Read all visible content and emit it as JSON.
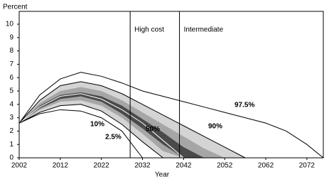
{
  "chart_data": {
    "type": "fan",
    "y_label": "Percent",
    "x_label": "Year",
    "x": [
      2002,
      2007,
      2012,
      2017,
      2022,
      2027,
      2032,
      2037,
      2042,
      2047,
      2052,
      2057,
      2062,
      2067,
      2072,
      2076
    ],
    "xlim": [
      2002,
      2076
    ],
    "xticks": [
      2002,
      2012,
      2022,
      2032,
      2042,
      2052,
      2062,
      2072
    ],
    "ylim": [
      0,
      10
    ],
    "yticks": [
      0,
      1,
      2,
      3,
      4,
      5,
      6,
      7,
      8,
      9,
      10
    ],
    "bands": [
      {
        "color": "#d4d4d4",
        "lower": [
          2.6,
          3.4,
          3.9,
          4.0,
          3.5,
          2.5,
          1.2,
          0,
          null,
          null,
          null,
          null,
          null,
          null,
          null,
          null
        ],
        "upper": [
          2.6,
          4.3,
          5.4,
          5.7,
          5.4,
          4.8,
          4.0,
          3.2,
          2.4,
          1.6,
          0.8,
          0,
          null,
          null,
          null,
          null
        ]
      },
      {
        "color": "#a6a6a6",
        "lower": [
          2.6,
          3.6,
          4.2,
          4.3,
          3.9,
          3.0,
          1.8,
          0.5,
          0,
          null,
          null,
          null,
          null,
          null,
          null,
          null
        ],
        "upper": [
          2.6,
          4.1,
          5.0,
          5.3,
          5.0,
          4.3,
          3.4,
          2.5,
          1.6,
          0.7,
          0,
          null,
          null,
          null,
          null,
          null
        ]
      },
      {
        "color": "#4a4a4a",
        "lower": [
          2.6,
          3.7,
          4.4,
          4.6,
          4.2,
          3.3,
          2.2,
          1.0,
          0,
          null,
          null,
          null,
          null,
          null,
          null,
          null
        ],
        "upper": [
          2.6,
          3.9,
          4.7,
          4.9,
          4.6,
          3.9,
          2.9,
          1.9,
          0.8,
          0,
          null,
          null,
          null,
          null,
          null,
          null
        ]
      }
    ],
    "series": [
      {
        "name": "97.5%",
        "color": "#000000",
        "values": [
          2.6,
          4.7,
          5.9,
          6.4,
          6.1,
          5.6,
          5.0,
          4.6,
          4.2,
          3.8,
          3.4,
          3.0,
          2.6,
          2.0,
          1.0,
          0
        ]
      },
      {
        "name": "90%",
        "color": "#000000",
        "values": [
          2.6,
          4.3,
          5.4,
          5.7,
          5.4,
          4.8,
          4.0,
          3.2,
          2.4,
          1.6,
          0.8,
          0,
          null,
          null,
          null,
          null
        ]
      },
      {
        "name": "50%",
        "color": "#ffffff",
        "values": [
          2.6,
          3.8,
          4.6,
          4.8,
          4.4,
          3.6,
          2.6,
          1.3,
          0,
          null,
          null,
          null,
          null,
          null,
          null,
          null
        ]
      },
      {
        "name": "10%",
        "color": "#000000",
        "values": [
          2.6,
          3.4,
          3.9,
          4.0,
          3.5,
          2.5,
          1.2,
          0,
          null,
          null,
          null,
          null,
          null,
          null,
          null,
          null
        ]
      },
      {
        "name": "2.5%",
        "color": "#000000",
        "values": [
          2.6,
          3.3,
          3.6,
          3.5,
          3.0,
          2.0,
          0,
          null,
          null,
          null,
          null,
          null,
          null,
          null,
          null,
          null
        ]
      }
    ],
    "vlines": [
      {
        "x": 2029,
        "label": "High cost"
      },
      {
        "x": 2041,
        "label": "Intermediate"
      }
    ]
  }
}
